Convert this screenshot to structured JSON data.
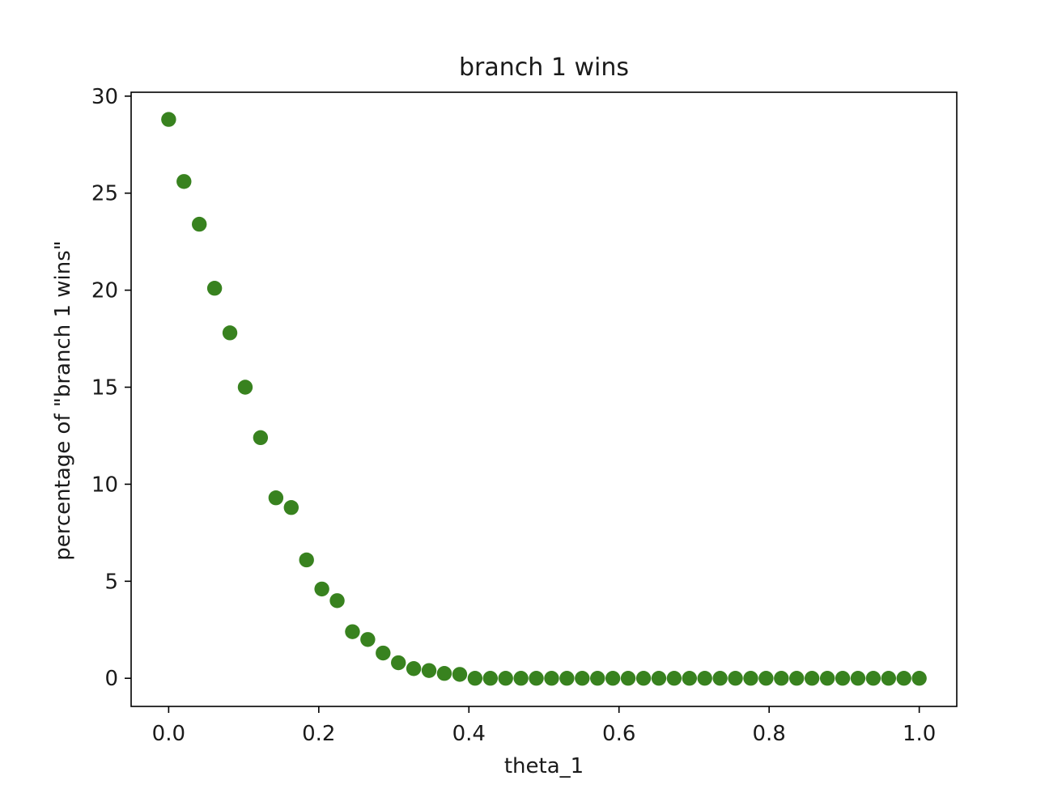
{
  "chart_data": {
    "type": "scatter",
    "title": "branch 1 wins",
    "xlabel": "theta_1",
    "ylabel": "percentage of \"branch 1 wins\"",
    "xlim": [
      -0.05,
      1.05
    ],
    "ylim": [
      -1.45,
      30.2
    ],
    "xticks": [
      0.0,
      0.2,
      0.4,
      0.6,
      0.8,
      1.0
    ],
    "xtick_labels": [
      "0.0",
      "0.2",
      "0.4",
      "0.6",
      "0.8",
      "1.0"
    ],
    "yticks": [
      0,
      5,
      10,
      15,
      20,
      25,
      30
    ],
    "ytick_labels": [
      "0",
      "5",
      "10",
      "15",
      "20",
      "25",
      "30"
    ],
    "grid": false,
    "marker_color": "#38821f",
    "x": [
      0.0,
      0.0204,
      0.0408,
      0.0612,
      0.0816,
      0.102,
      0.1224,
      0.1429,
      0.1633,
      0.1837,
      0.2041,
      0.2245,
      0.2449,
      0.2653,
      0.2857,
      0.3061,
      0.3265,
      0.3469,
      0.3673,
      0.3878,
      0.4082,
      0.4286,
      0.449,
      0.4694,
      0.4898,
      0.5102,
      0.5306,
      0.551,
      0.5714,
      0.5918,
      0.6122,
      0.6327,
      0.6531,
      0.6735,
      0.6939,
      0.7143,
      0.7347,
      0.7551,
      0.7755,
      0.7959,
      0.8163,
      0.8367,
      0.8571,
      0.8776,
      0.898,
      0.9184,
      0.9388,
      0.9592,
      0.9796,
      1.0
    ],
    "y": [
      28.8,
      25.6,
      23.4,
      20.1,
      17.8,
      15.0,
      12.4,
      9.3,
      8.8,
      6.1,
      4.6,
      4.0,
      2.4,
      2.0,
      1.3,
      0.8,
      0.5,
      0.4,
      0.25,
      0.2,
      0,
      0,
      0,
      0,
      0,
      0,
      0,
      0,
      0,
      0,
      0,
      0,
      0,
      0,
      0,
      0,
      0,
      0,
      0,
      0,
      0,
      0,
      0,
      0,
      0,
      0,
      0,
      0,
      0,
      0
    ]
  }
}
